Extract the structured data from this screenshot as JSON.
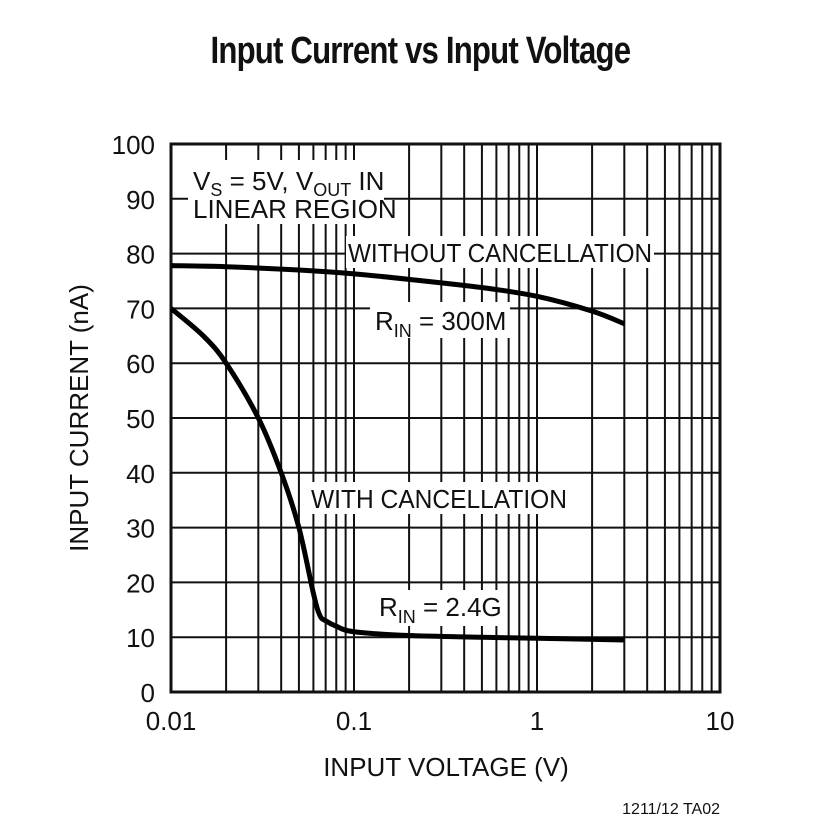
{
  "chart": {
    "title": "Input Current vs Input Voltage",
    "xlabel": "INPUT VOLTAGE (V)",
    "ylabel": "INPUT CURRENT (nA)",
    "x_ticks": [
      "0.01",
      "0.1",
      "1",
      "10"
    ],
    "y_ticks": [
      "0",
      "10",
      "20",
      "30",
      "40",
      "50",
      "60",
      "70",
      "80",
      "90",
      "100"
    ],
    "annotations": {
      "condition_line1_main": "V",
      "condition_line1_sub_s": "S",
      "condition_line1_mid": " = 5V, V",
      "condition_line1_sub_out": "OUT",
      "condition_line1_end": " IN",
      "condition_line2": "LINEAR REGION",
      "without_label": "WITHOUT CANCELLATION",
      "rin_without_main": "R",
      "rin_without_sub": "IN",
      "rin_without_value": " = 300M",
      "with_label": "WITH CANCELLATION",
      "rin_with_main": "R",
      "rin_with_sub": "IN",
      "rin_with_value": " = 2.4G"
    },
    "footnote": "1211/12 TA02"
  },
  "chart_data": {
    "type": "line",
    "title": "Input Current vs Input Voltage",
    "xlabel": "INPUT VOLTAGE (V)",
    "ylabel": "INPUT CURRENT (nA)",
    "xscale": "log",
    "xlim": [
      0.01,
      10
    ],
    "ylim": [
      0,
      100
    ],
    "x_tick_labels": [
      "0.01",
      "0.1",
      "1",
      "10"
    ],
    "y_tick_labels": [
      "0",
      "10",
      "20",
      "30",
      "40",
      "50",
      "60",
      "70",
      "80",
      "90",
      "100"
    ],
    "grid": true,
    "annotations": [
      "VS = 5V, VOUT IN LINEAR REGION",
      "WITHOUT CANCELLATION",
      "RIN = 300M",
      "WITH CANCELLATION",
      "RIN = 2.4G"
    ],
    "series": [
      {
        "name": "WITHOUT CANCELLATION (RIN = 300M)",
        "x": [
          0.01,
          0.02,
          0.05,
          0.1,
          0.2,
          0.5,
          1,
          2,
          3
        ],
        "y": [
          77.8,
          77.6,
          77.0,
          76.3,
          75.3,
          73.8,
          72.2,
          69.5,
          67.2
        ]
      },
      {
        "name": "WITH CANCELLATION (RIN = 2.4G)",
        "x": [
          0.01,
          0.015,
          0.02,
          0.03,
          0.04,
          0.05,
          0.06,
          0.065,
          0.07,
          0.08,
          0.1,
          0.2,
          0.5,
          1,
          3
        ],
        "y": [
          70,
          65,
          60,
          50,
          40,
          30,
          18,
          14,
          13,
          12,
          11,
          10.3,
          10,
          9.8,
          9.5
        ]
      }
    ]
  }
}
